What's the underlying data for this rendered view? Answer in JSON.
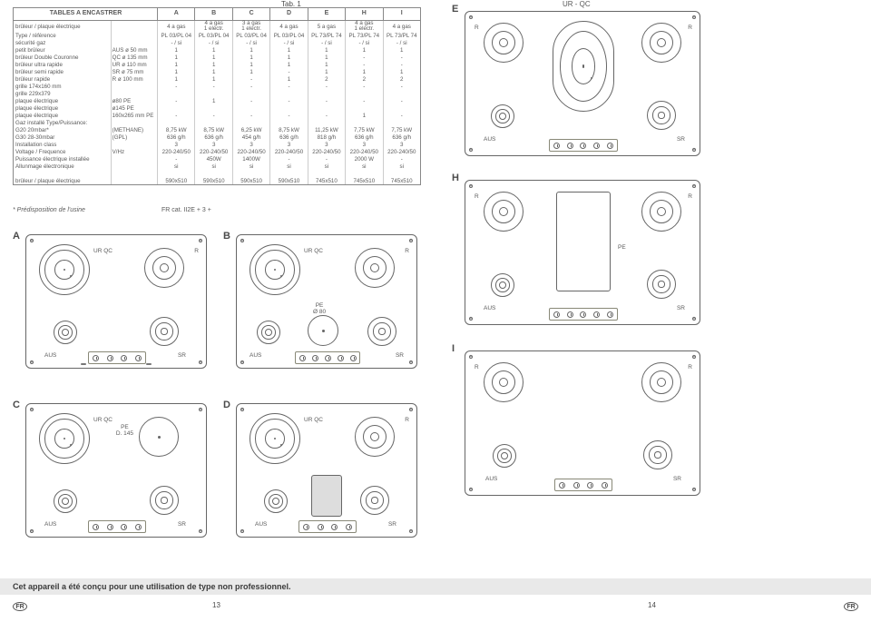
{
  "tab_label": "Tab. 1",
  "table": {
    "title": "TABLES A ENCASTRER",
    "cols": [
      "A",
      "B",
      "C",
      "D",
      "E",
      "H",
      "I"
    ],
    "rows": [
      {
        "l": "brûleur / plaque électrique",
        "l2": "",
        "v": [
          "4 a gas",
          "4 a gas\n1 electr.",
          "3 a gas\n1 electr.",
          "4 a gas",
          "5 a gas",
          "4 a gas\n1 electr.",
          "4 a gas"
        ]
      },
      {
        "l": "Type / référence",
        "l2": "",
        "v": [
          "PL 03/PL 04",
          "PL 03/PL 04",
          "PL 03/PL 04",
          "PL 03/PL 04",
          "PL 73/PL 74",
          "PL 73/PL 74",
          "PL 73/PL 74"
        ]
      },
      {
        "l": "sécurité gaz",
        "l2": "",
        "v": [
          "- / si",
          "- / si",
          "- / si",
          "- / si",
          "- / si",
          "- / si",
          "- / si"
        ]
      },
      {
        "l": "petit brûleur",
        "l2": "AUS ø 50 mm",
        "v": [
          "1",
          "1",
          "1",
          "1",
          "1",
          "1",
          "1"
        ]
      },
      {
        "l": "brûleur Double Couronne",
        "l2": "QC ø 135 mm",
        "v": [
          "1",
          "1",
          "1",
          "1",
          "1",
          "-",
          "-"
        ]
      },
      {
        "l": "brûleur ultra rapide",
        "l2": "UR ø 110 mm",
        "v": [
          "1",
          "1",
          "1",
          "1",
          "1",
          "-",
          "-"
        ]
      },
      {
        "l": "brûleur semi rapide",
        "l2": "SR ø 75 mm",
        "v": [
          "1",
          "1",
          "1",
          "-",
          "1",
          "1",
          "1"
        ]
      },
      {
        "l": "brûleur rapide",
        "l2": "R ø 100 mm",
        "v": [
          "1",
          "1",
          "-",
          "1",
          "2",
          "2",
          "2"
        ]
      },
      {
        "l": "grille 174x160 mm",
        "l2": "",
        "v": [
          "-",
          "-",
          "-",
          "-",
          "-",
          "-",
          "-"
        ]
      },
      {
        "l": "grille 229x379",
        "l2": "",
        "v": [
          "",
          "",
          "",
          "",
          "",
          "",
          ""
        ]
      },
      {
        "l": "plaque électrique",
        "l2": "ø80        PE",
        "v": [
          "-",
          "1",
          "-",
          "-",
          "-",
          "-",
          "-"
        ]
      },
      {
        "l": "plaque électrique",
        "l2": "ø145      PE",
        "v": [
          "",
          "",
          "",
          "",
          "",
          "",
          ""
        ]
      },
      {
        "l": "plaque électrique",
        "l2": "160x265 mm  PE",
        "v": [
          "-",
          "-",
          "-",
          "-",
          "-",
          "1",
          "-"
        ]
      },
      {
        "l": "Gaz installé Type/Puissance:",
        "l2": "",
        "v": [
          "",
          "",
          "",
          "",
          "",
          "",
          ""
        ]
      },
      {
        "l": "G20 20mbar*",
        "l2": "(METHANE)",
        "v": [
          "8,75 kW",
          "8,75 kW",
          "6,25 kW",
          "8,75 kW",
          "11,25 kW",
          "7,75 kW",
          "7,75 kW"
        ]
      },
      {
        "l": "G30 28-30mbar",
        "l2": "(GPL)",
        "v": [
          "636 g/h",
          "636 g/h",
          "454 g/h",
          "636 g/h",
          "818 g/h",
          "636 g/h",
          "636 g/h"
        ]
      },
      {
        "l": "Installation class",
        "l2": "",
        "v": [
          "3",
          "3",
          "3",
          "3",
          "3",
          "3",
          "3"
        ]
      },
      {
        "l": "Voltage / Frequence",
        "l2": "V/Hz",
        "v": [
          "220-240/50",
          "220-240/50",
          "220-240/50",
          "220-240/50",
          "220-240/50",
          "220-240/50",
          "220-240/50"
        ]
      },
      {
        "l": "Puissance électrique installée",
        "l2": "",
        "v": [
          "-",
          "450W",
          "1400W",
          "-",
          "-",
          "2000 W",
          "-"
        ]
      },
      {
        "l": "Allunmage électronique",
        "l2": "",
        "v": [
          "si",
          "si",
          "si",
          "si",
          "si",
          "si",
          "si"
        ]
      },
      {
        "l": "",
        "l2": "",
        "v": [
          "",
          "",
          "",
          "",
          "",
          "",
          ""
        ]
      },
      {
        "l": "brûleur / plaque électrique",
        "l2": "",
        "v": [
          "590x510",
          "590x510",
          "590x510",
          "590x510",
          "745x510",
          "745x510",
          "745x510"
        ]
      }
    ]
  },
  "footnote": "* Prédisposition de l'usine",
  "cat": "FR cat. II2E + 3 +",
  "hob_labels": {
    "UR_QC_top": "UR - QC",
    "UR_QC": "UR QC",
    "R": "R",
    "AUS": "AUS",
    "SR": "SR",
    "PE": "PE",
    "PE80": "PE\nØ 80",
    "PE145": "PE\nD. 145"
  },
  "bottom_text": "Cet appareil a été conçu pour une utilisation de type non professionnel.",
  "page_left": "13",
  "page_right": "14",
  "fr": "FR"
}
